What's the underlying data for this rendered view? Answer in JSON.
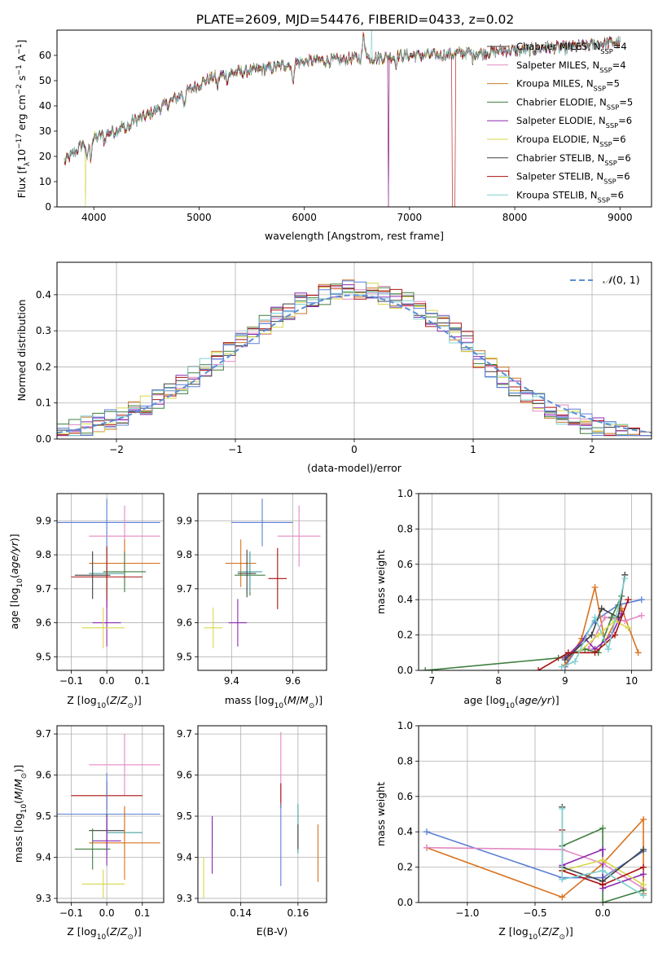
{
  "title": "PLATE=2609, MJD=54476, FIBERID=0433, z=0.02",
  "colors": [
    "#404040",
    "#e388c2",
    "#c8782b",
    "#3f7f3f",
    "#8b29b0",
    "#d7d74a",
    "#404040",
    "#aa1111",
    "#7fd0d0"
  ],
  "series_names": [
    "Chabrier MILES, N_SSP=4",
    "Salpeter MILES, N_SSP=4",
    "Kroupa MILES, N_SSP=5",
    "Chabrier ELODIE, N_SSP=5",
    "Salpeter ELODIE, N_SSP=6",
    "Kroupa ELODIE, N_SSP=6",
    "Chabrier STELIB, N_SSP=6",
    "Salpeter STELIB, N_SSP=6",
    "Kroupa STELIB, N_SSP=6"
  ],
  "chart_data": [
    {
      "id": "spectrum",
      "type": "line",
      "xlabel": "wavelength [Angstrom, rest frame]",
      "ylabel": "Flux [f_λ 10^-17 erg cm^-2 s^-1 A^-1]",
      "xlim": [
        3650,
        9300
      ],
      "ylim": [
        0,
        70
      ],
      "xticks": [
        4000,
        5000,
        6000,
        7000,
        8000,
        9000
      ],
      "yticks": [
        0,
        10,
        20,
        30,
        40,
        50,
        60
      ],
      "legend": "top-right",
      "continuum": {
        "x": [
          3720,
          3800,
          3900,
          4000,
          4100,
          4200,
          4300,
          4500,
          4700,
          4900,
          5100,
          5300,
          5500,
          5700,
          5900,
          6100,
          6300,
          6500,
          6700,
          6900,
          7100,
          7300,
          7500,
          7700,
          7900,
          8100,
          8300,
          8500,
          8700,
          8900,
          9000
        ],
        "y": [
          18,
          21,
          25,
          27,
          29,
          30,
          33,
          36,
          41,
          46,
          51,
          53,
          54,
          55,
          57,
          58,
          58,
          59,
          59,
          60,
          60,
          60,
          61,
          61,
          62,
          62,
          63,
          63,
          64,
          65,
          65
        ]
      }
    },
    {
      "id": "residuals",
      "type": "histogram",
      "xlabel": "(data-model)/error",
      "ylabel": "Normed distribution",
      "xlim": [
        -2.5,
        2.5
      ],
      "ylim": [
        0,
        0.49
      ],
      "xticks": [
        -2,
        -1,
        0,
        1,
        2
      ],
      "yticks": [
        0.0,
        0.1,
        0.2,
        0.3,
        0.4
      ],
      "bin_width": 0.1,
      "legend_label": "N(0,1)",
      "legend": "top-right",
      "grid": true
    },
    {
      "id": "age_vs_Z",
      "type": "errorbar",
      "xlabel": "Z [log10(Z/Z⊙)]",
      "ylabel": "age [log10(age/yr)]",
      "xlim": [
        -0.14,
        0.16
      ],
      "ylim": [
        9.46,
        9.98
      ],
      "xticks": [
        -0.1,
        0.0,
        0.1
      ],
      "yticks": [
        9.5,
        9.6,
        9.7,
        9.8,
        9.9
      ],
      "points": [
        {
          "x": 0.0,
          "y": 9.895,
          "xerr": 0.15,
          "yerr": 0.07,
          "c": "#5b7fd6"
        },
        {
          "x": 0.05,
          "y": 9.855,
          "xerr": 0.1,
          "yerr": 0.09,
          "c": "#e388c2"
        },
        {
          "x": 0.05,
          "y": 9.775,
          "xerr": 0.1,
          "yerr": 0.07,
          "c": "#d9731f"
        },
        {
          "x": 0.05,
          "y": 9.75,
          "xerr": 0.06,
          "yerr": 0.06,
          "c": "#3f7f3f"
        },
        {
          "x": 0.0,
          "y": 9.745,
          "xerr": 0.05,
          "yerr": 0.08,
          "c": "#4aa0a0"
        },
        {
          "x": -0.04,
          "y": 9.74,
          "xerr": 0.05,
          "yerr": 0.07,
          "c": "#404040"
        },
        {
          "x": 0.0,
          "y": 9.735,
          "xerr": 0.1,
          "yerr": 0.09,
          "c": "#aa1111"
        },
        {
          "x": 0.0,
          "y": 9.6,
          "xerr": 0.04,
          "yerr": 0.07,
          "c": "#8b29b0"
        },
        {
          "x": -0.01,
          "y": 9.585,
          "xerr": 0.06,
          "yerr": 0.06,
          "c": "#d7d74a"
        }
      ]
    },
    {
      "id": "age_vs_mass",
      "type": "errorbar",
      "xlabel": "mass [log10(M/M⊙)]",
      "ylabel": "",
      "xlim": [
        9.29,
        9.71
      ],
      "ylim": [
        9.46,
        9.98
      ],
      "xticks": [
        9.4,
        9.6
      ],
      "yticks": [
        9.5,
        9.6,
        9.7,
        9.8,
        9.9
      ],
      "points": [
        {
          "x": 9.5,
          "y": 9.895,
          "xerr": 0.1,
          "yerr": 0.07,
          "c": "#5b7fd6"
        },
        {
          "x": 9.62,
          "y": 9.855,
          "xerr": 0.07,
          "yerr": 0.09,
          "c": "#e388c2"
        },
        {
          "x": 9.43,
          "y": 9.775,
          "xerr": 0.05,
          "yerr": 0.07,
          "c": "#d9731f"
        },
        {
          "x": 9.46,
          "y": 9.74,
          "xerr": 0.05,
          "yerr": 0.06,
          "c": "#3f7f3f"
        },
        {
          "x": 9.46,
          "y": 9.75,
          "xerr": 0.04,
          "yerr": 0.06,
          "c": "#4aa0a0"
        },
        {
          "x": 9.45,
          "y": 9.745,
          "xerr": 0.03,
          "yerr": 0.07,
          "c": "#404040"
        },
        {
          "x": 9.55,
          "y": 9.73,
          "xerr": 0.03,
          "yerr": 0.09,
          "c": "#aa1111"
        },
        {
          "x": 9.42,
          "y": 9.6,
          "xerr": 0.03,
          "yerr": 0.07,
          "c": "#8b29b0"
        },
        {
          "x": 9.34,
          "y": 9.585,
          "xerr": 0.03,
          "yerr": 0.06,
          "c": "#d7d74a"
        }
      ]
    },
    {
      "id": "massweight_vs_age",
      "type": "line",
      "xlabel": "age [log10(age/yr)]",
      "ylabel": "mass weight",
      "xlim": [
        6.8,
        10.3
      ],
      "ylim": [
        0.0,
        1.0
      ],
      "xticks": [
        7,
        8,
        9,
        10
      ],
      "yticks": [
        0.0,
        0.2,
        0.4,
        0.6,
        0.8,
        1.0
      ],
      "series": [
        {
          "c": "#5b7fd6",
          "x": [
            9.0,
            9.45,
            9.8,
            10.15
          ],
          "y": [
            0.02,
            0.28,
            0.37,
            0.4
          ]
        },
        {
          "c": "#d9731f",
          "x": [
            9.0,
            9.25,
            9.45,
            9.6,
            9.85,
            10.1
          ],
          "y": [
            0.03,
            0.18,
            0.47,
            0.16,
            0.35,
            0.1
          ]
        },
        {
          "c": "#e388c2",
          "x": [
            9.35,
            9.6,
            9.9,
            10.15
          ],
          "y": [
            0.12,
            0.3,
            0.28,
            0.31
          ]
        },
        {
          "c": "#3f7f3f",
          "x": [
            6.9,
            8.9,
            9.3,
            9.5,
            9.7,
            9.85
          ],
          "y": [
            0.0,
            0.07,
            0.12,
            0.1,
            0.3,
            0.42
          ]
        },
        {
          "c": "#8b29b0",
          "x": [
            9.0,
            9.3,
            9.45,
            9.7,
            9.85
          ],
          "y": [
            0.07,
            0.18,
            0.12,
            0.2,
            0.32
          ]
        },
        {
          "c": "#d7d74a",
          "x": [
            9.2,
            9.5,
            9.75,
            9.95
          ],
          "y": [
            0.1,
            0.2,
            0.28,
            0.24
          ]
        },
        {
          "c": "#404040",
          "x": [
            9.0,
            9.4,
            9.55,
            9.8,
            9.9
          ],
          "y": [
            0.06,
            0.2,
            0.35,
            0.3,
            0.54
          ]
        },
        {
          "c": "#aa1111",
          "x": [
            8.6,
            9.05,
            9.45,
            9.75,
            9.95
          ],
          "y": [
            0.0,
            0.1,
            0.1,
            0.2,
            0.4
          ]
        },
        {
          "c": "#7fd0d0",
          "x": [
            8.95,
            9.15,
            9.45,
            9.65,
            9.9
          ],
          "y": [
            0.02,
            0.05,
            0.3,
            0.12,
            0.52
          ]
        }
      ]
    },
    {
      "id": "mass_vs_Z",
      "type": "errorbar",
      "xlabel": "Z [log10(Z/Z⊙)]",
      "ylabel": "mass [log10(M/M⊙)]",
      "xlim": [
        -0.14,
        0.16
      ],
      "ylim": [
        9.29,
        9.72
      ],
      "xticks": [
        -0.1,
        0.0,
        0.1
      ],
      "yticks": [
        9.3,
        9.4,
        9.5,
        9.6,
        9.7
      ],
      "points": [
        {
          "x": 0.05,
          "y": 9.625,
          "xerr": 0.1,
          "yerr": 0.075,
          "c": "#e388c2"
        },
        {
          "x": 0.0,
          "y": 9.55,
          "xerr": 0.1,
          "yerr": 0.035,
          "c": "#aa1111"
        },
        {
          "x": 0.0,
          "y": 9.505,
          "xerr": 0.15,
          "yerr": 0.1,
          "c": "#5b7fd6"
        },
        {
          "x": 0.05,
          "y": 9.46,
          "xerr": 0.05,
          "yerr": 0.06,
          "c": "#4aa0a0"
        },
        {
          "x": 0.0,
          "y": 9.465,
          "xerr": 0.05,
          "yerr": 0.04,
          "c": "#404040"
        },
        {
          "x": 0.05,
          "y": 9.435,
          "xerr": 0.1,
          "yerr": 0.09,
          "c": "#d9731f"
        },
        {
          "x": -0.04,
          "y": 9.42,
          "xerr": 0.05,
          "yerr": 0.05,
          "c": "#3f7f3f"
        },
        {
          "x": 0.0,
          "y": 9.44,
          "xerr": 0.04,
          "yerr": 0.06,
          "c": "#8b29b0"
        },
        {
          "x": -0.01,
          "y": 9.335,
          "xerr": 0.06,
          "yerr": 0.035,
          "c": "#d7d74a"
        }
      ]
    },
    {
      "id": "mass_vs_ebv",
      "type": "errorbar",
      "xlabel": "E(B-V)",
      "ylabel": "",
      "xlim": [
        0.125,
        0.17
      ],
      "ylim": [
        9.29,
        9.72
      ],
      "xticks": [
        0.14,
        0.16
      ],
      "yticks": [
        9.3,
        9.4,
        9.5,
        9.6,
        9.7
      ],
      "points": [
        {
          "x": 0.154,
          "y": 9.62,
          "xerr": 0.0,
          "yerr": 0.085,
          "c": "#e388c2"
        },
        {
          "x": 0.154,
          "y": 9.55,
          "xerr": 0.0,
          "yerr": 0.03,
          "c": "#aa1111"
        },
        {
          "x": 0.154,
          "y": 9.43,
          "xerr": 0.0,
          "yerr": 0.1,
          "c": "#5b7fd6"
        },
        {
          "x": 0.16,
          "y": 9.47,
          "xerr": 0.0,
          "yerr": 0.06,
          "c": "#4aa0a0"
        },
        {
          "x": 0.16,
          "y": 9.45,
          "xerr": 0.0,
          "yerr": 0.03,
          "c": "#404040"
        },
        {
          "x": 0.167,
          "y": 9.41,
          "xerr": 0.0,
          "yerr": 0.07,
          "c": "#d9731f"
        },
        {
          "x": 0.13,
          "y": 9.46,
          "xerr": 0.0,
          "yerr": 0.04,
          "c": "#3f7f3f"
        },
        {
          "x": 0.13,
          "y": 9.43,
          "xerr": 0.0,
          "yerr": 0.07,
          "c": "#8b29b0"
        },
        {
          "x": 0.127,
          "y": 9.35,
          "xerr": 0.0,
          "yerr": 0.05,
          "c": "#d7d74a"
        }
      ]
    },
    {
      "id": "massweight_vs_Z",
      "type": "line",
      "xlabel": "Z [log10(Z/Z⊙)]",
      "ylabel": "mass weight",
      "xlim": [
        -1.36,
        0.36
      ],
      "ylim": [
        0.0,
        1.0
      ],
      "xticks": [
        -1.0,
        -0.5,
        0.0
      ],
      "yticks": [
        0.0,
        0.2,
        0.4,
        0.6,
        0.8,
        1.0
      ],
      "series": [
        {
          "c": "#5b7fd6",
          "x": [
            -1.3,
            -0.3,
            0.0,
            0.3
          ],
          "y": [
            0.4,
            0.14,
            0.14,
            0.29
          ]
        },
        {
          "c": "#d9731f",
          "x": [
            -1.3,
            -0.3,
            0.0,
            0.3,
            0.3
          ],
          "y": [
            0.31,
            0.03,
            0.22,
            0.47,
            0.05
          ]
        },
        {
          "c": "#e388c2",
          "x": [
            -1.3,
            -0.3,
            0.0,
            0.3
          ],
          "y": [
            0.31,
            0.3,
            0.22,
            0.08
          ]
        },
        {
          "c": "#3f7f3f",
          "x": [
            -0.3,
            0.0,
            0.0,
            0.3
          ],
          "y": [
            0.32,
            0.42,
            0.0,
            0.07
          ]
        },
        {
          "c": "#8b29b0",
          "x": [
            -0.3,
            0.0,
            0.0,
            0.3
          ],
          "y": [
            0.21,
            0.3,
            0.08,
            0.16
          ]
        },
        {
          "c": "#d7d74a",
          "x": [
            -0.3,
            0.0,
            0.3
          ],
          "y": [
            0.18,
            0.24,
            0.1
          ]
        },
        {
          "c": "#404040",
          "x": [
            -0.3,
            -0.3,
            0.0,
            0.3
          ],
          "y": [
            0.54,
            0.2,
            0.12,
            0.3
          ]
        },
        {
          "c": "#aa1111",
          "x": [
            -0.3,
            -0.3,
            0.0,
            0.3
          ],
          "y": [
            0.41,
            0.18,
            0.1,
            0.2
          ]
        },
        {
          "c": "#7fd0d0",
          "x": [
            -0.3,
            -0.3,
            0.0,
            0.3
          ],
          "y": [
            0.53,
            0.13,
            0.18,
            0.04
          ]
        }
      ]
    }
  ]
}
